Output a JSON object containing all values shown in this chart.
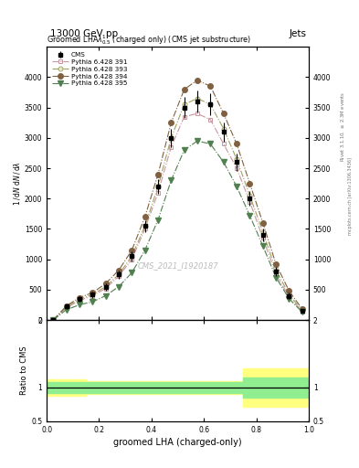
{
  "title_top": "13000 GeV pp",
  "title_right": "Jets",
  "plot_title": "Groomed LHA$\\lambda^{1}_{0.5}$ (charged only) (CMS jet substructure)",
  "xlabel": "groomed LHA (charged-only)",
  "ylabel_ratio": "Ratio to CMS",
  "watermark": "CMS_2021_I1920187",
  "right_label_1": "Rivet 3.1.10, $\\geq$ 2.3M events",
  "right_label_2": "mcplots.cern.ch [arXiv:1306.3436]",
  "x_bins": [
    0.0,
    0.05,
    0.1,
    0.15,
    0.2,
    0.25,
    0.3,
    0.35,
    0.4,
    0.45,
    0.5,
    0.55,
    0.6,
    0.65,
    0.7,
    0.75,
    0.8,
    0.85,
    0.9,
    0.95,
    1.0
  ],
  "cms_y": [
    0.0,
    220,
    350,
    420,
    550,
    750,
    1050,
    1550,
    2200,
    3000,
    3500,
    3600,
    3550,
    3100,
    2600,
    2000,
    1400,
    800,
    400,
    150,
    0.0
  ],
  "cms_yerr": [
    0.0,
    40,
    50,
    50,
    60,
    70,
    80,
    100,
    120,
    150,
    170,
    180,
    180,
    160,
    140,
    120,
    100,
    70,
    50,
    30,
    0.0
  ],
  "py391_y": [
    0.0,
    200,
    320,
    400,
    520,
    720,
    1000,
    1500,
    2100,
    2850,
    3350,
    3400,
    3300,
    2900,
    2500,
    1950,
    1350,
    750,
    380,
    140,
    0.0
  ],
  "py393_y": [
    0.0,
    220,
    340,
    420,
    550,
    750,
    1050,
    1550,
    2200,
    3000,
    3550,
    3650,
    3550,
    3150,
    2650,
    2050,
    1450,
    820,
    420,
    160,
    0.0
  ],
  "py394_y": [
    0.0,
    230,
    370,
    450,
    600,
    820,
    1150,
    1700,
    2400,
    3250,
    3800,
    3950,
    3850,
    3400,
    2900,
    2250,
    1600,
    920,
    480,
    180,
    0.0
  ],
  "py395_y": [
    0.0,
    170,
    250,
    300,
    400,
    550,
    780,
    1150,
    1650,
    2300,
    2800,
    2950,
    2900,
    2600,
    2200,
    1720,
    1220,
    700,
    350,
    130,
    0.0
  ],
  "color_391": "#c896a0",
  "color_393": "#a0a060",
  "color_394": "#806040",
  "color_395": "#508050",
  "color_cms": "#000000",
  "ylim_main": [
    0,
    4500
  ],
  "ylim_ratio": [
    0.5,
    2.0
  ],
  "green_band_y1": [
    0.92,
    0.92,
    0.92,
    0.92,
    0.92,
    0.92,
    0.92,
    0.92,
    0.92,
    0.92,
    0.92,
    0.92,
    0.92,
    0.92,
    0.92,
    0.85,
    0.85,
    0.85,
    0.85,
    0.85,
    0.85
  ],
  "green_band_y2": [
    1.08,
    1.08,
    1.08,
    1.08,
    1.08,
    1.08,
    1.08,
    1.08,
    1.08,
    1.08,
    1.08,
    1.08,
    1.08,
    1.08,
    1.08,
    1.15,
    1.15,
    1.15,
    1.15,
    1.15,
    1.15
  ],
  "yellow_band_y1": [
    0.88,
    0.88,
    0.88,
    0.9,
    0.9,
    0.9,
    0.9,
    0.9,
    0.9,
    0.9,
    0.9,
    0.9,
    0.9,
    0.9,
    0.9,
    0.72,
    0.72,
    0.72,
    0.72,
    0.72,
    0.72
  ],
  "yellow_band_y2": [
    1.12,
    1.12,
    1.12,
    1.1,
    1.1,
    1.1,
    1.1,
    1.1,
    1.1,
    1.1,
    1.1,
    1.1,
    1.1,
    1.1,
    1.1,
    1.28,
    1.28,
    1.28,
    1.28,
    1.28,
    1.28
  ],
  "bg_color": "#ffffff"
}
